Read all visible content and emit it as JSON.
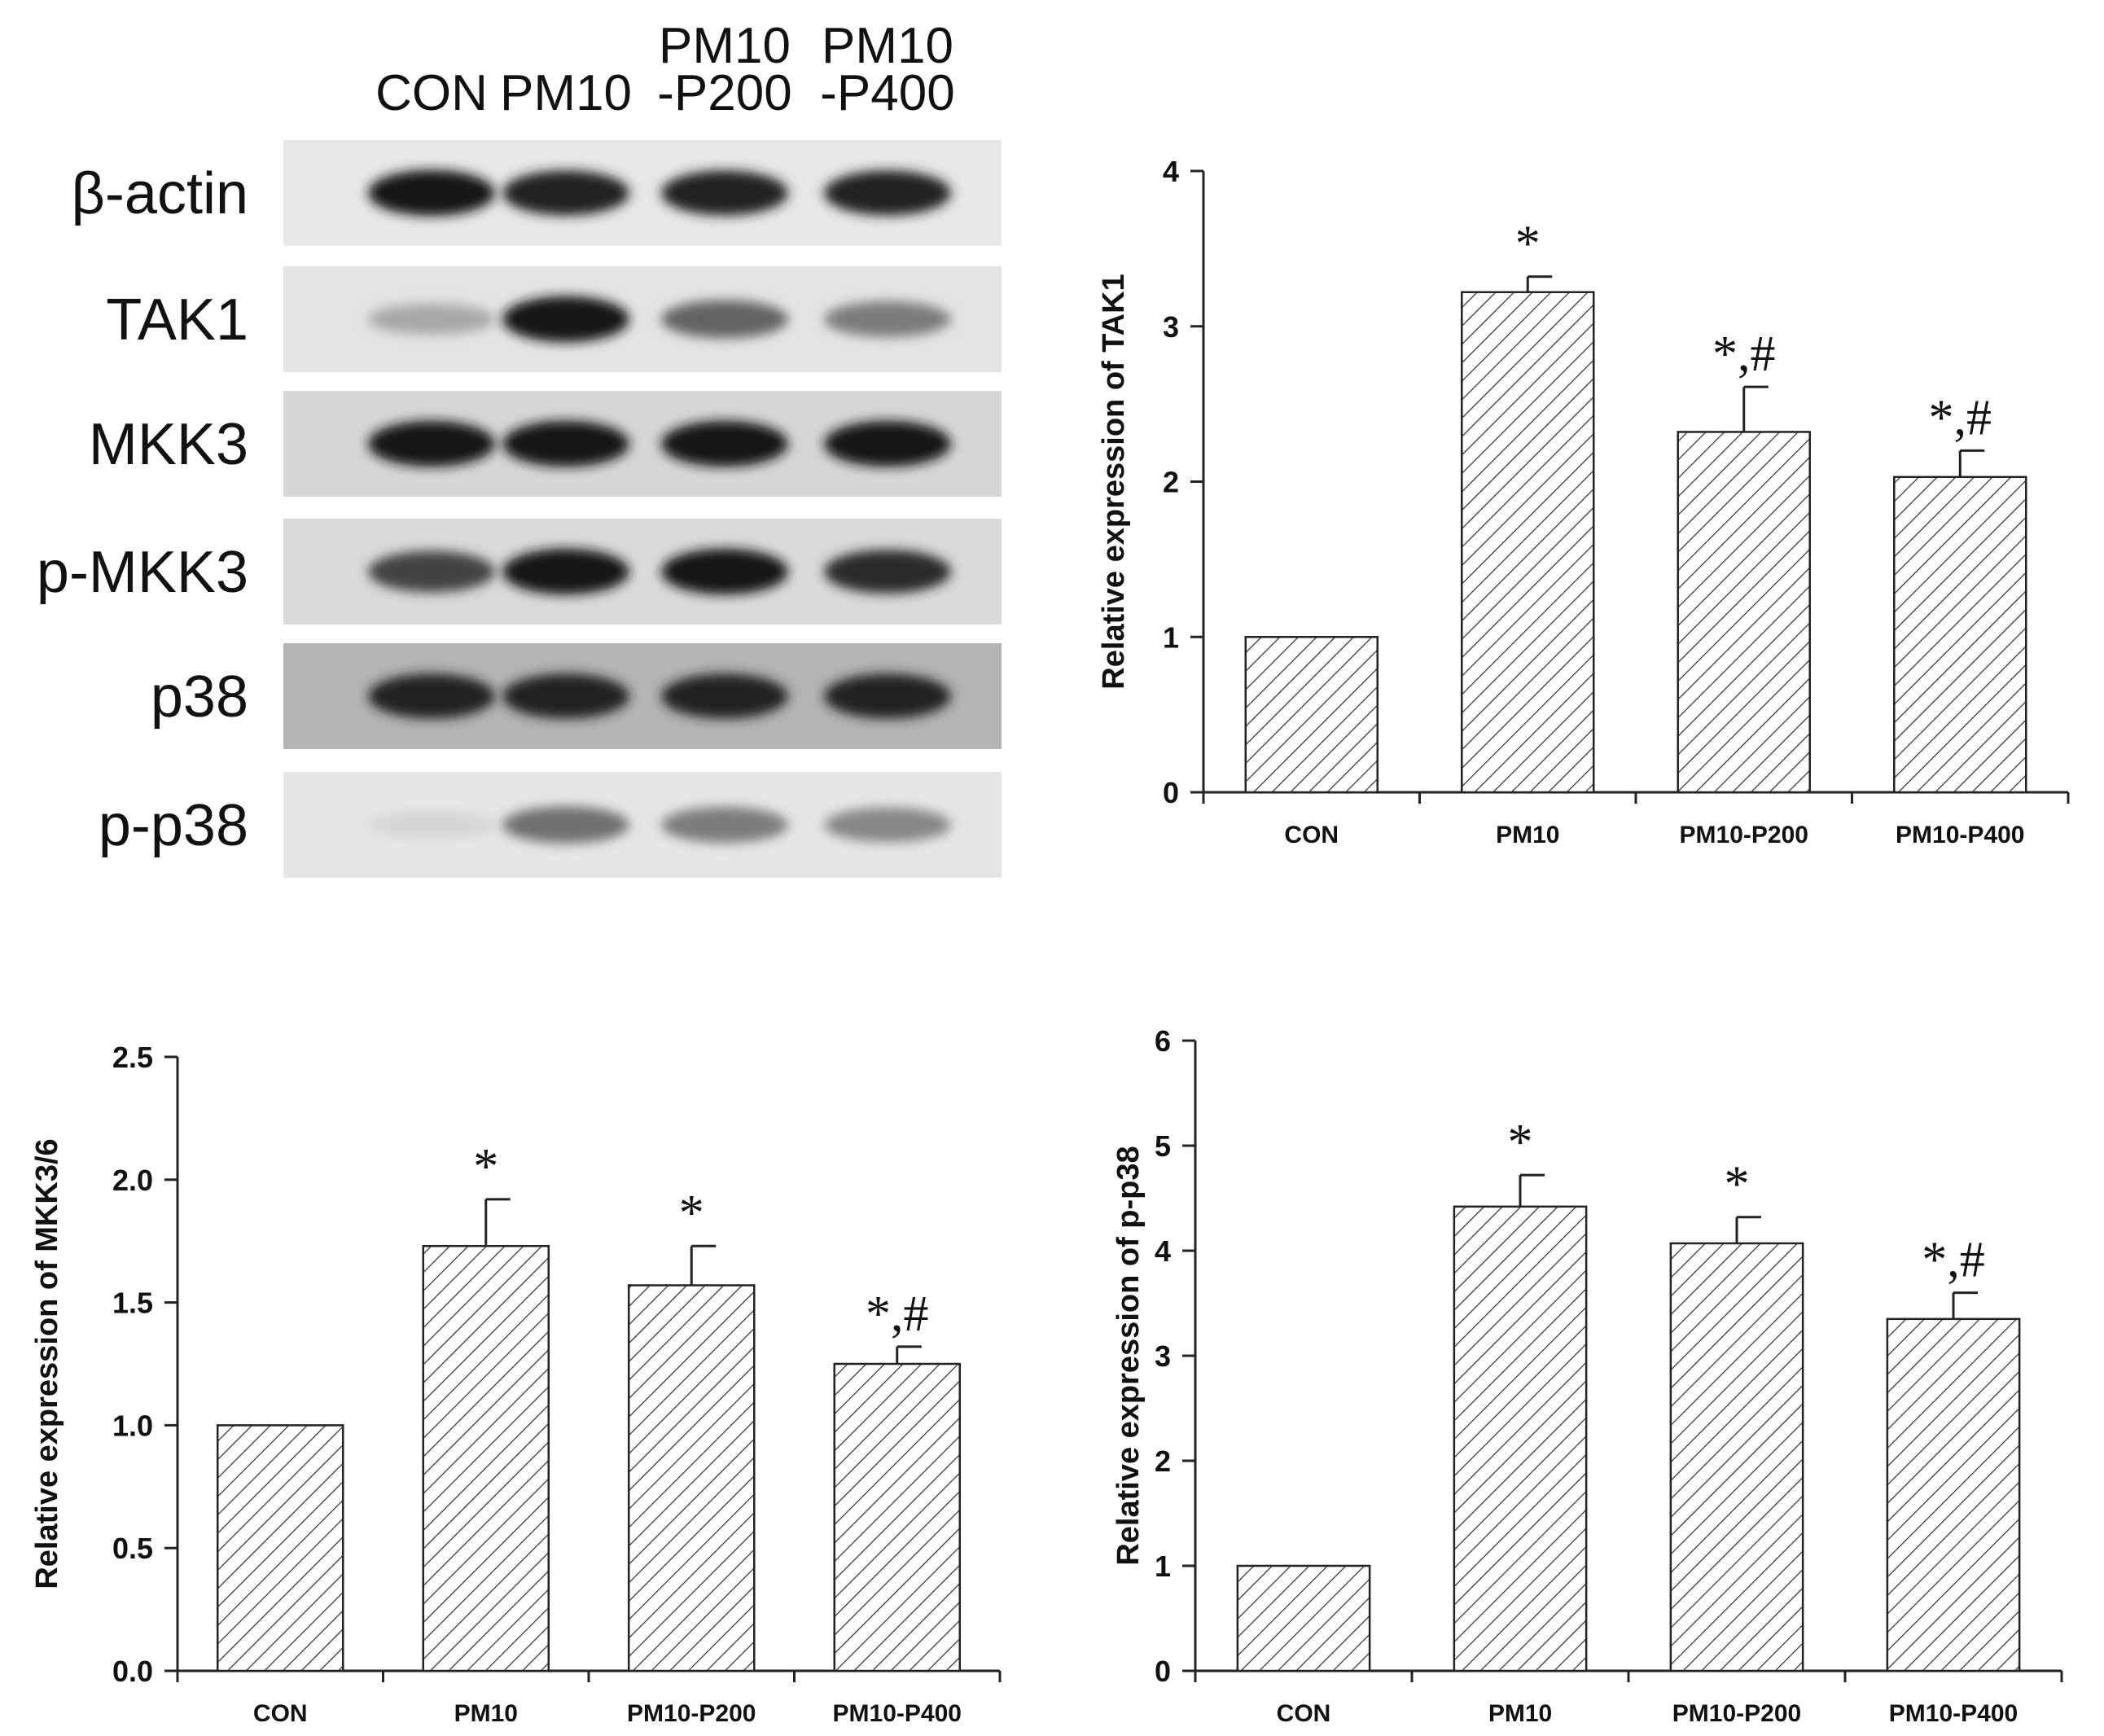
{
  "blot": {
    "lanes": [
      [
        "CON"
      ],
      [
        "PM10"
      ],
      [
        "PM10",
        "-P200"
      ],
      [
        "PM10",
        "-P400"
      ]
    ],
    "rows": [
      {
        "name": "β-actin",
        "intensity": [
          0.95,
          0.9,
          0.9,
          0.9
        ],
        "bg": "#e7e7e7"
      },
      {
        "name": "TAK1",
        "intensity": [
          0.3,
          0.95,
          0.6,
          0.5
        ],
        "bg": "#e4e4e4"
      },
      {
        "name": "MKK3",
        "intensity": [
          0.95,
          0.95,
          0.95,
          0.95
        ],
        "bg": "#d6d6d6"
      },
      {
        "name": "p-MKK3",
        "intensity": [
          0.75,
          0.95,
          0.95,
          0.85
        ],
        "bg": "#dadada"
      },
      {
        "name": "p38",
        "intensity": [
          0.9,
          0.9,
          0.9,
          0.9
        ],
        "bg": "#b4b4b4"
      },
      {
        "name": "p-p38",
        "intensity": [
          0.1,
          0.55,
          0.5,
          0.45
        ],
        "bg": "#e6e6e6"
      }
    ]
  },
  "chart_data": [
    {
      "type": "bar",
      "ylabel": "Relative expression of TAK1",
      "categories": [
        "CON",
        "PM10",
        "PM10-P200",
        "PM10-P400"
      ],
      "values": [
        1.0,
        3.22,
        2.32,
        2.03
      ],
      "errors": [
        0,
        0.1,
        0.29,
        0.17
      ],
      "significance": [
        "",
        "*",
        "*,#",
        "*,#"
      ],
      "ylim": [
        0,
        4
      ],
      "yticks": [
        "0",
        "1",
        "2",
        "3",
        "4"
      ],
      "ytick_values": [
        0,
        1,
        2,
        3,
        4
      ],
      "hatch": "diagonal",
      "grid": false
    },
    {
      "type": "bar",
      "ylabel": "Relative expression of MKK3/6",
      "categories": [
        "CON",
        "PM10",
        "PM10-P200",
        "PM10-P400"
      ],
      "values": [
        1.0,
        1.73,
        1.57,
        1.25
      ],
      "errors": [
        0,
        0.19,
        0.16,
        0.07
      ],
      "significance": [
        "",
        "*",
        "*",
        "*,#"
      ],
      "ylim": [
        0,
        2.5
      ],
      "yticks": [
        "0.0",
        "0.5",
        "1.0",
        "1.5",
        "2.0",
        "2.5"
      ],
      "ytick_values": [
        0,
        0.5,
        1.0,
        1.5,
        2.0,
        2.5
      ],
      "hatch": "diagonal",
      "grid": false
    },
    {
      "type": "bar",
      "ylabel": "Relative expression of p-p38",
      "categories": [
        "CON",
        "PM10",
        "PM10-P200",
        "PM10-P400"
      ],
      "values": [
        1.0,
        4.42,
        4.07,
        3.35
      ],
      "errors": [
        0,
        0.3,
        0.25,
        0.25
      ],
      "significance": [
        "",
        "*",
        "*",
        "*,#"
      ],
      "ylim": [
        0,
        6
      ],
      "yticks": [
        "0",
        "1",
        "2",
        "3",
        "4",
        "5",
        "6"
      ],
      "ytick_values": [
        0,
        1,
        2,
        3,
        4,
        5,
        6
      ],
      "hatch": "diagonal",
      "grid": false
    }
  ]
}
